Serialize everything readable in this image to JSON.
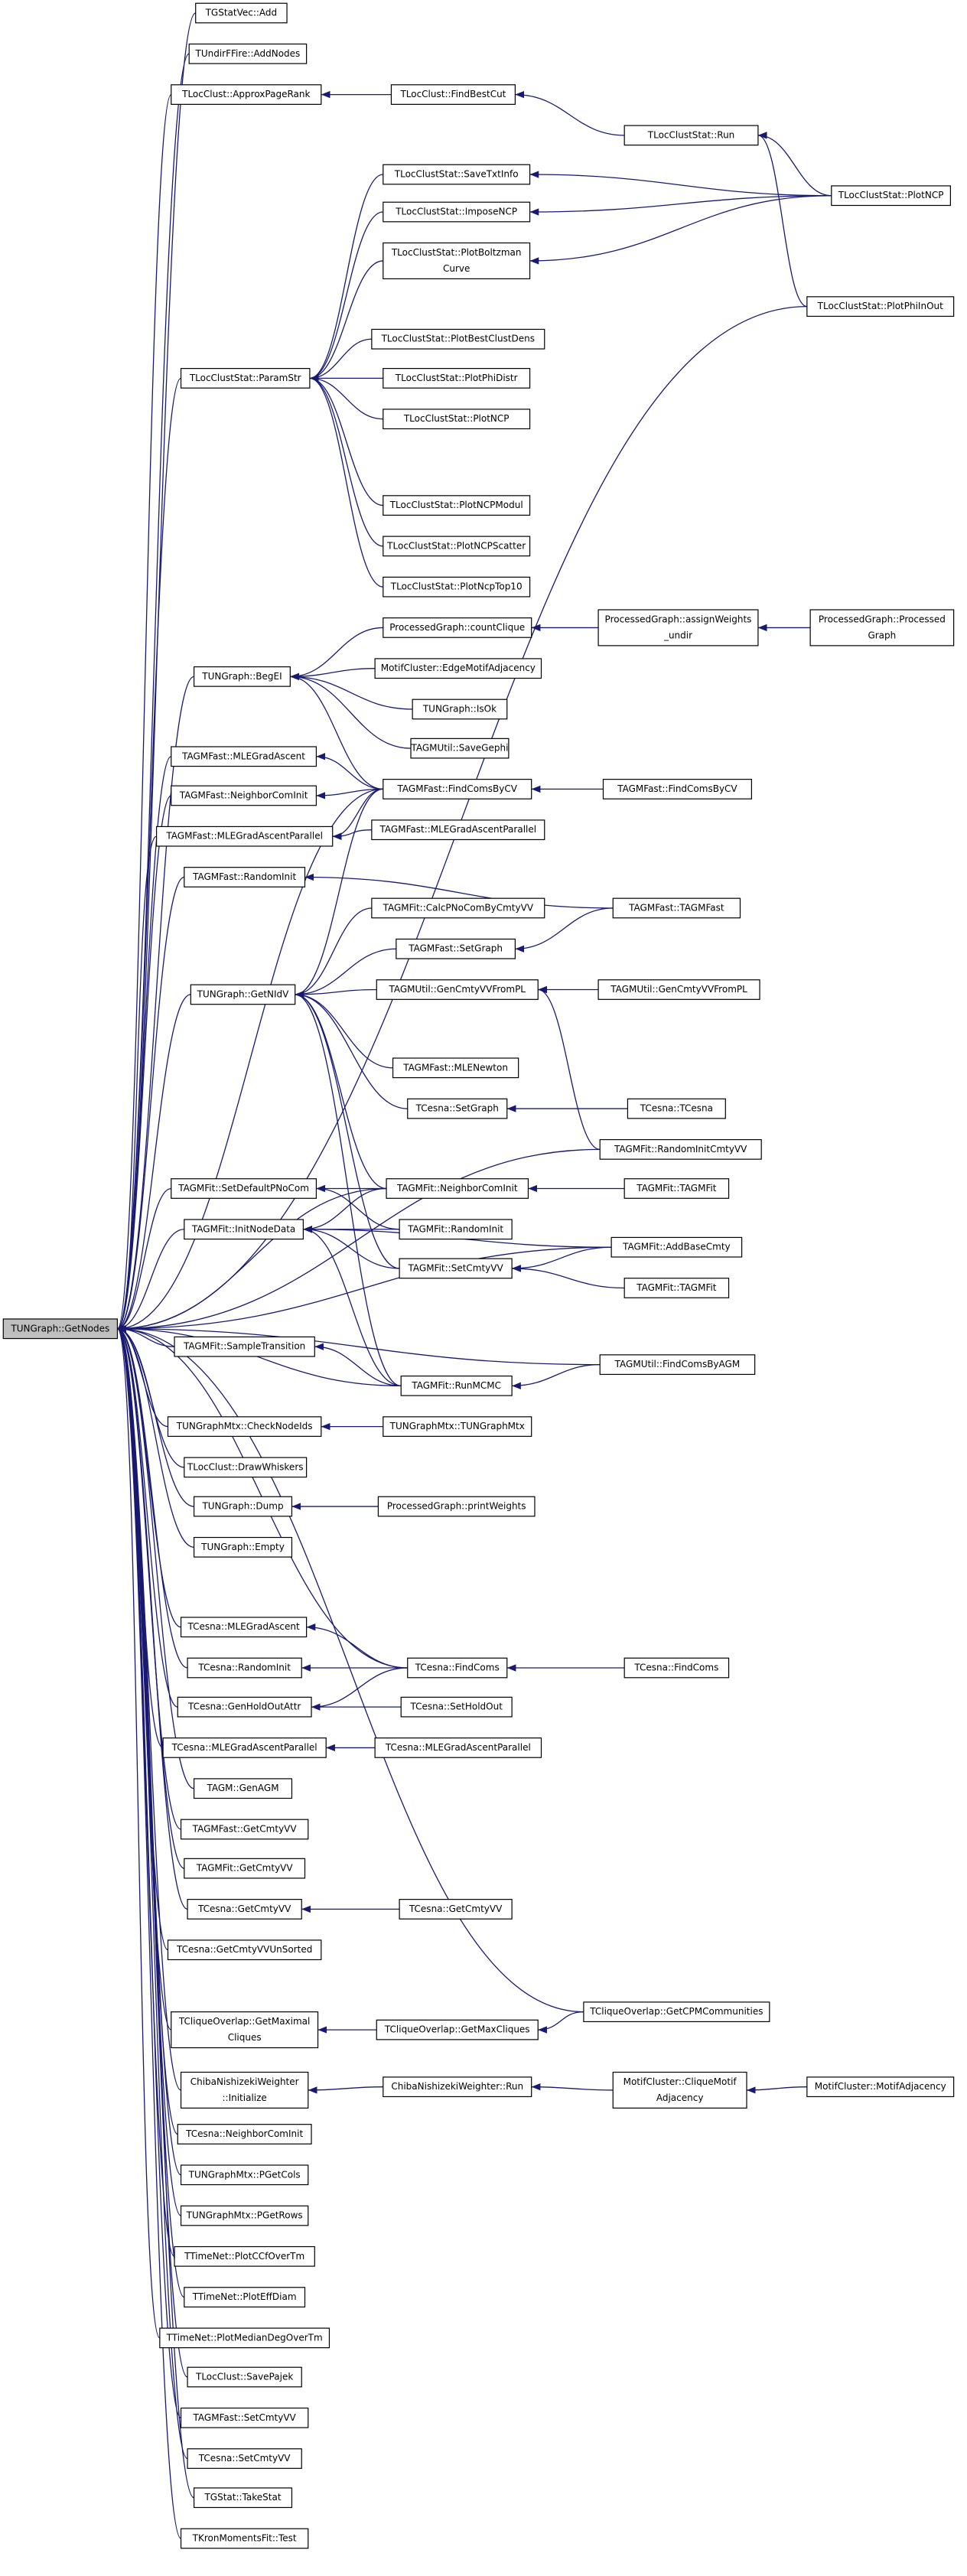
{
  "nodes": [
    {
      "label": [
        "TUNGraph::GetNodes"
      ]
    },
    {
      "label": [
        "TGStatVec::Add"
      ]
    },
    {
      "label": [
        "TUndirFFire::AddNodes"
      ]
    },
    {
      "label": [
        "TLocClust::ApproxPageRank"
      ]
    },
    {
      "label": [
        "TLocClustStat::ParamStr"
      ]
    },
    {
      "label": [
        "TUNGraph::BegEI"
      ]
    },
    {
      "label": [
        "TAGMFast::MLEGradAscent"
      ]
    },
    {
      "label": [
        "TAGMFast::NeighborComInit"
      ]
    },
    {
      "label": [
        "TAGMFast::MLEGradAscentParallel"
      ]
    },
    {
      "label": [
        "TAGMFast::RandomInit"
      ]
    },
    {
      "label": [
        "TUNGraph::GetNIdV"
      ]
    },
    {
      "label": [
        "TAGMFit::SetDefaultPNoCom"
      ]
    },
    {
      "label": [
        "TAGMFit::InitNodeData"
      ]
    },
    {
      "label": [
        "TAGMFit::SampleTransition"
      ]
    },
    {
      "label": [
        "TUNGraphMtx::CheckNodeIds"
      ]
    },
    {
      "label": [
        "TLocClust::DrawWhiskers"
      ]
    },
    {
      "label": [
        "TUNGraph::Dump"
      ]
    },
    {
      "label": [
        "TUNGraph::Empty"
      ]
    },
    {
      "label": [
        "TCesna::MLEGradAscent"
      ]
    },
    {
      "label": [
        "TCesna::RandomInit"
      ]
    },
    {
      "label": [
        "TCesna::GenHoldOutAttr"
      ]
    },
    {
      "label": [
        "TCesna::MLEGradAscentParallel"
      ]
    },
    {
      "label": [
        "TAGM::GenAGM"
      ]
    },
    {
      "label": [
        "TAGMFast::GetCmtyVV"
      ]
    },
    {
      "label": [
        "TAGMFit::GetCmtyVV"
      ]
    },
    {
      "label": [
        "TCesna::GetCmtyVV"
      ]
    },
    {
      "label": [
        "TCesna::GetCmtyVVUnSorted"
      ]
    },
    {
      "label": [
        "TCliqueOverlap::GetMaximal",
        "Cliques"
      ]
    },
    {
      "label": [
        "ChibaNishizekiWeighter",
        "::Initialize"
      ]
    },
    {
      "label": [
        "TCesna::NeighborComInit"
      ]
    },
    {
      "label": [
        "TUNGraphMtx::PGetCols"
      ]
    },
    {
      "label": [
        "TUNGraphMtx::PGetRows"
      ]
    },
    {
      "label": [
        "TTimeNet::PlotCCfOverTm"
      ]
    },
    {
      "label": [
        "TTimeNet::PlotEffDiam"
      ]
    },
    {
      "label": [
        "TTimeNet::PlotMedianDegOverTm"
      ]
    },
    {
      "label": [
        "TLocClust::SavePajek"
      ]
    },
    {
      "label": [
        "TAGMFast::SetCmtyVV"
      ]
    },
    {
      "label": [
        "TCesna::SetCmtyVV"
      ]
    },
    {
      "label": [
        "TGStat::TakeStat"
      ]
    },
    {
      "label": [
        "TKronMomentsFit::Test"
      ]
    },
    {
      "label": [
        "TLocClust::FindBestCut"
      ]
    },
    {
      "label": [
        "TLocClustStat::SaveTxtInfo"
      ]
    },
    {
      "label": [
        "TLocClustStat::ImposeNCP"
      ]
    },
    {
      "label": [
        "TLocClustStat::PlotBoltzman",
        "Curve"
      ]
    },
    {
      "label": [
        "TLocClustStat::PlotBestClustDens"
      ]
    },
    {
      "label": [
        "TLocClustStat::PlotPhiDistr"
      ]
    },
    {
      "label": [
        "TLocClustStat::PlotNCP"
      ]
    },
    {
      "label": [
        "TLocClustStat::PlotNCPModul"
      ]
    },
    {
      "label": [
        "TLocClustStat::PlotNCPScatter"
      ]
    },
    {
      "label": [
        "TLocClustStat::PlotNcpTop10"
      ]
    },
    {
      "label": [
        "ProcessedGraph::countClique"
      ]
    },
    {
      "label": [
        "MotifCluster::EdgeMotifAdjacency"
      ]
    },
    {
      "label": [
        "TUNGraph::IsOk"
      ]
    },
    {
      "label": [
        "TAGMUtil::SaveGephi"
      ]
    },
    {
      "label": [
        "TAGMFast::FindComsByCV"
      ]
    },
    {
      "label": [
        "TAGMFast::MLEGradAscentParallel"
      ]
    },
    {
      "label": [
        "TAGMFit::CalcPNoComByCmtyVV"
      ]
    },
    {
      "label": [
        "TAGMFast::SetGraph"
      ]
    },
    {
      "label": [
        "TAGMUtil::GenCmtyVVFromPL"
      ]
    },
    {
      "label": [
        "TAGMFast::MLENewton"
      ]
    },
    {
      "label": [
        "TCesna::SetGraph"
      ]
    },
    {
      "label": [
        "TAGMFit::NeighborComInit"
      ]
    },
    {
      "label": [
        "TAGMFit::RandomInit"
      ]
    },
    {
      "label": [
        "TAGMFit::SetCmtyVV"
      ]
    },
    {
      "label": [
        "TAGMFit::RunMCMC"
      ]
    },
    {
      "label": [
        "TUNGraphMtx::TUNGraphMtx"
      ]
    },
    {
      "label": [
        "ProcessedGraph::printWeights"
      ]
    },
    {
      "label": [
        "TCesna::FindComs"
      ]
    },
    {
      "label": [
        "TCesna::SetHoldOut"
      ]
    },
    {
      "label": [
        "TCesna::MLEGradAscentParallel"
      ]
    },
    {
      "label": [
        "TCesna::GetCmtyVV"
      ]
    },
    {
      "label": [
        "TCliqueOverlap::GetMaxCliques"
      ]
    },
    {
      "label": [
        "ChibaNishizekiWeighter::Run"
      ]
    },
    {
      "label": [
        "TLocClustStat::Run"
      ]
    },
    {
      "label": [
        "ProcessedGraph::assignWeights",
        "_undir"
      ]
    },
    {
      "label": [
        "TAGMFast::FindComsByCV"
      ]
    },
    {
      "label": [
        "TAGMFast::TAGMFast"
      ]
    },
    {
      "label": [
        "TAGMUtil::GenCmtyVVFromPL"
      ]
    },
    {
      "label": [
        "TCesna::TCesna"
      ]
    },
    {
      "label": [
        "TAGMFit::RandomInitCmtyVV"
      ]
    },
    {
      "label": [
        "TAGMFit::TAGMFit"
      ]
    },
    {
      "label": [
        "TAGMFit::AddBaseCmty"
      ]
    },
    {
      "label": [
        "TAGMFit::TAGMFit"
      ]
    },
    {
      "label": [
        "TAGMUtil::FindComsByAGM"
      ]
    },
    {
      "label": [
        "TCesna::FindComs"
      ]
    },
    {
      "label": [
        "TCliqueOverlap::GetCPMCommunities"
      ]
    },
    {
      "label": [
        "MotifCluster::CliqueMotif",
        "Adjacency"
      ]
    },
    {
      "label": [
        "TLocClustStat::PlotNCP"
      ]
    },
    {
      "label": [
        "TLocClustStat::PlotPhiInOut"
      ]
    },
    {
      "label": [
        "ProcessedGraph::Processed",
        "Graph"
      ]
    },
    {
      "label": [
        "MotifCluster::MotifAdjacency"
      ]
    }
  ]
}
